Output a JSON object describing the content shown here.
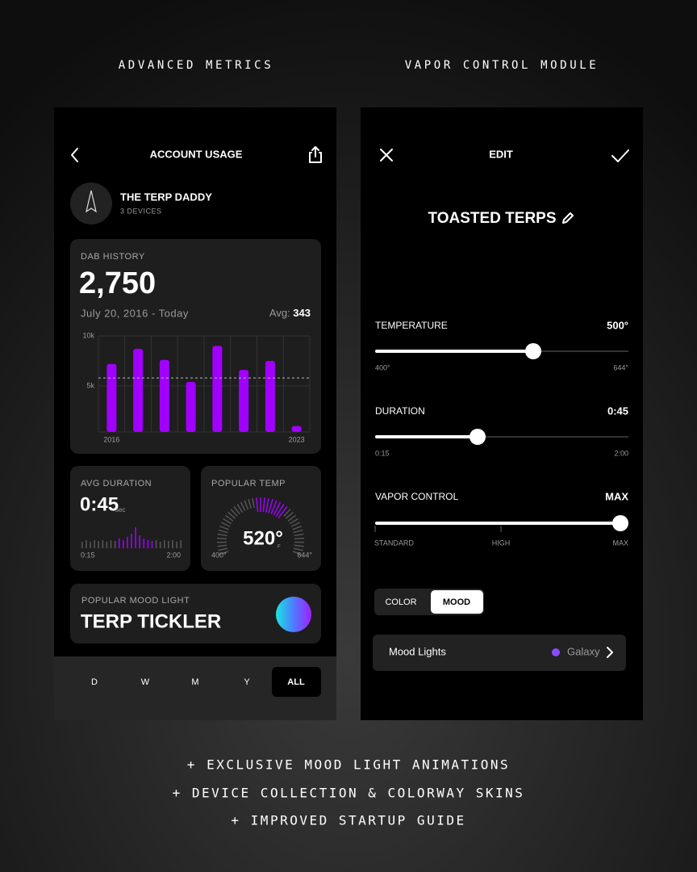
{
  "headers": {
    "left": "ADVANCED METRICS",
    "right": "VAPOR CONTROL MODULE"
  },
  "account_usage": {
    "title": "ACCOUNT USAGE",
    "user": {
      "name": "THE TERP DADDY",
      "devices": "3 DEVICES"
    },
    "dab_history": {
      "label": "DAB HISTORY",
      "total": "2,750",
      "range": "July 20, 2016 - Today",
      "avg_label": "Avg:",
      "avg": "343",
      "chart": {
        "type": "bar",
        "categories": [
          "2016",
          null,
          null,
          null,
          null,
          null,
          null,
          "2023"
        ],
        "values": [
          7200,
          8700,
          7600,
          5400,
          9000,
          6600,
          7500,
          1000
        ],
        "color": "#a100ff",
        "ylim": [
          0,
          10000
        ],
        "yticks": [
          {
            "value": 5000,
            "label": "5k"
          },
          {
            "value": 10000,
            "label": "10k"
          }
        ],
        "reference_line": 5800
      }
    },
    "avg_duration": {
      "label": "AVG DURATION",
      "value": "0:45",
      "unit": "sec",
      "min_label": "0:15",
      "max_label": "2:00",
      "histogram": [
        8,
        10,
        8,
        10,
        9,
        10,
        8,
        10,
        9,
        12,
        10,
        14,
        18,
        26,
        16,
        12,
        10,
        9,
        10,
        8,
        10,
        9,
        10,
        8,
        10
      ]
    },
    "popular_temp": {
      "label": "POPULAR TEMP",
      "value": "520°",
      "unit": "F",
      "min_label": "400°",
      "max_label": "644°"
    },
    "mood_light": {
      "label": "POPULAR MOOD LIGHT",
      "name": "TERP TICKLER"
    },
    "tabs": [
      "D",
      "W",
      "M",
      "Y",
      "ALL"
    ]
  },
  "edit": {
    "title": "EDIT",
    "preset": "TOASTED TERPS",
    "sliders": [
      {
        "label": "TEMPERATURE",
        "value": "500°",
        "min_label": "400°",
        "max_label": "644°"
      },
      {
        "label": "DURATION",
        "value": "0:45",
        "min_label": "0:15",
        "max_label": "2:00"
      },
      {
        "label": "VAPOR CONTROL",
        "value": "MAX",
        "stops": [
          "STANDARD",
          "HIGH",
          "MAX"
        ]
      }
    ],
    "toggle": [
      "COLOR",
      "MOOD"
    ],
    "mood_row": {
      "label": "Mood Lights",
      "value": "Galaxy"
    }
  },
  "features": [
    "+ EXCLUSIVE MOOD LIGHT ANIMATIONS",
    "+ DEVICE COLLECTION & COLORWAY SKINS",
    "+ IMPROVED STARTUP GUIDE"
  ]
}
